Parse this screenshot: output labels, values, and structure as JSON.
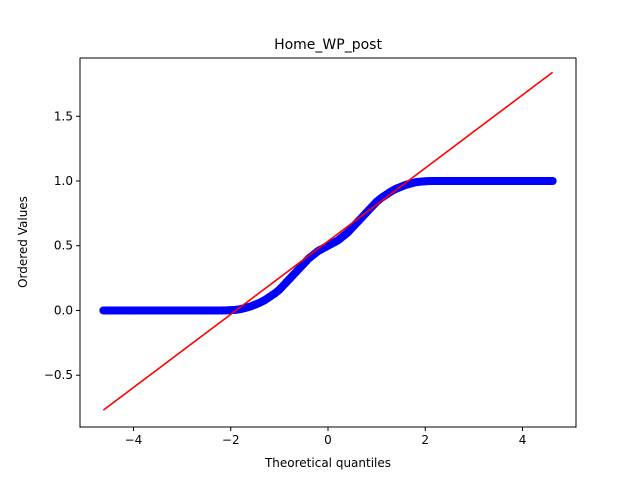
{
  "chart_data": {
    "type": "scatter",
    "title": "Home_WP_post",
    "xlabel": "Theoretical quantiles",
    "ylabel": "Ordered Values",
    "xlim": [
      -5.1,
      5.1
    ],
    "ylim": [
      -0.9,
      1.95
    ],
    "x_ticks": [
      -4,
      -2,
      0,
      2,
      4
    ],
    "x_tick_labels": [
      "−4",
      "−2",
      "0",
      "2",
      "4"
    ],
    "y_ticks": [
      -0.5,
      0.0,
      0.5,
      1.0,
      1.5
    ],
    "y_tick_labels": [
      "−0.5",
      "0.0",
      "0.5",
      "1.0",
      "1.5"
    ],
    "grid": false,
    "legend": "none",
    "series": [
      {
        "kind": "points",
        "color": "#0000ff",
        "x": [
          -4.62,
          -4.35,
          -4.2,
          -4.0,
          -3.8,
          -3.6,
          -3.4,
          -3.2,
          -3.0,
          -2.8,
          -2.6,
          -2.4,
          -2.2,
          -2.0,
          -1.9,
          -1.8,
          -1.7,
          -1.6,
          -1.5,
          -1.4,
          -1.3,
          -1.2,
          -1.1,
          -1.0,
          -0.9,
          -0.8,
          -0.7,
          -0.6,
          -0.5,
          -0.4,
          -0.3,
          -0.2,
          -0.1,
          0.0,
          0.1,
          0.2,
          0.3,
          0.4,
          0.5,
          0.6,
          0.7,
          0.8,
          0.9,
          1.0,
          1.1,
          1.2,
          1.3,
          1.4,
          1.5,
          1.6,
          1.7,
          1.8,
          1.9,
          2.0,
          2.2,
          2.4,
          2.6,
          2.8,
          3.0,
          3.2,
          3.4,
          3.6,
          3.8,
          4.0,
          4.2,
          4.4,
          4.62
        ],
        "y": [
          0.0,
          0.0,
          0.0,
          0.0,
          0.0,
          0.0,
          0.0,
          0.0,
          0.0,
          0.0,
          0.0,
          0.0,
          0.0,
          0.002,
          0.005,
          0.01,
          0.02,
          0.03,
          0.045,
          0.06,
          0.08,
          0.105,
          0.13,
          0.16,
          0.2,
          0.24,
          0.28,
          0.32,
          0.36,
          0.4,
          0.43,
          0.46,
          0.48,
          0.5,
          0.52,
          0.54,
          0.57,
          0.6,
          0.64,
          0.68,
          0.72,
          0.76,
          0.8,
          0.84,
          0.87,
          0.895,
          0.92,
          0.94,
          0.955,
          0.97,
          0.98,
          0.99,
          0.995,
          0.998,
          1.0,
          1.0,
          1.0,
          1.0,
          1.0,
          1.0,
          1.0,
          1.0,
          1.0,
          1.0,
          1.0,
          1.0,
          1.0
        ]
      },
      {
        "kind": "fit-line",
        "color": "#ff0000",
        "x": [
          -4.62,
          4.62
        ],
        "y": [
          -0.77,
          1.84
        ]
      }
    ]
  }
}
